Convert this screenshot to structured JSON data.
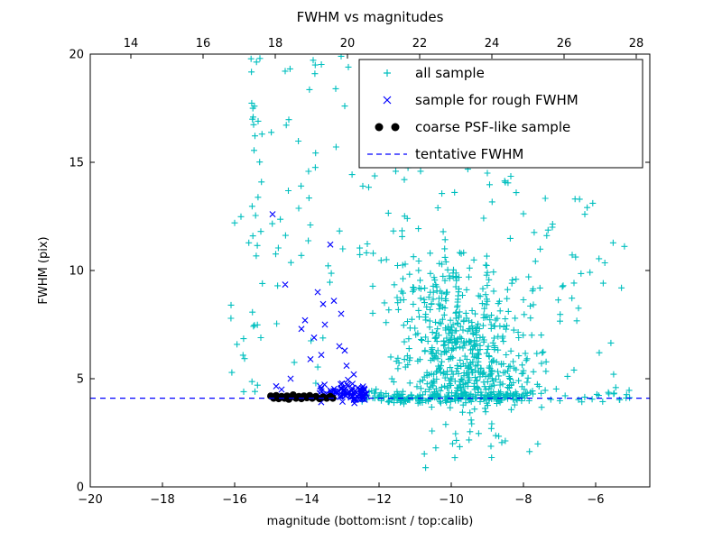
{
  "figure": {
    "background": "#ffffff",
    "frame_color": "#000000"
  },
  "chart_data": {
    "type": "scatter",
    "title": "FWHM vs magnitudes",
    "xlabel": "magnitude (bottom:isnt / top:calib)",
    "ylabel": "FWHM (pix)",
    "xlim": [
      -20,
      -4.5
    ],
    "ylim": [
      0,
      20
    ],
    "bottom_ticks": [
      -20,
      -18,
      -16,
      -14,
      -12,
      -10,
      -8,
      -6
    ],
    "top_ticks": [
      14,
      16,
      18,
      20,
      22,
      24,
      26,
      28
    ],
    "top_axis_range": [
      12.875,
      28.375
    ],
    "y_ticks": [
      0,
      5,
      10,
      15,
      20
    ],
    "grid": false,
    "legend_position": "upper right",
    "tentative_fwhm": 4.1,
    "series": [
      {
        "name": "all sample",
        "marker": "+",
        "color": "#00bfbf",
        "points": [
          [
            -13.05,
            19.9
          ],
          [
            -12.85,
            19.4
          ],
          [
            -13.2,
            18.4
          ],
          [
            -12.95,
            17.6
          ],
          [
            -15.3,
            19.8
          ],
          [
            -15.35,
            16.9
          ],
          [
            -12.0,
            16.5
          ],
          [
            -11.3,
            14.2
          ],
          [
            -12.45,
            13.9
          ],
          [
            -9.0,
            14.5
          ],
          [
            -8.2,
            13.6
          ],
          [
            -7.2,
            12.0
          ],
          [
            -6.3,
            12.6
          ],
          [
            -5.9,
            6.2
          ],
          [
            -5.5,
            4.3
          ],
          [
            -16.0,
            12.2
          ],
          [
            -16.1,
            8.4
          ],
          [
            -15.75,
            4.4
          ],
          [
            -9.9,
            1.35
          ],
          [
            -8.6,
            2.05
          ],
          [
            -6.9,
            9.3
          ],
          [
            -6.6,
            5.4
          ]
        ],
        "clusters": [
          {
            "dist": "gauss",
            "cx": -9.7,
            "cy": 6.6,
            "sx": 0.85,
            "sy": 1.6,
            "n": 400
          },
          {
            "dist": "gauss",
            "cx": -9.2,
            "cy": 5.0,
            "sx": 0.9,
            "sy": 0.6,
            "n": 120
          },
          {
            "dist": "band",
            "x0": -12.5,
            "x1": -8.0,
            "cy": 4.15,
            "sy": 0.12,
            "n": 210
          },
          {
            "dist": "band",
            "x0": -8.0,
            "x1": -5.0,
            "cy": 4.2,
            "sy": 0.25,
            "n": 30
          },
          {
            "dist": "uniform",
            "x0": -15.55,
            "x1": -15.2,
            "y0": 3.6,
            "y1": 20,
            "n": 30
          },
          {
            "dist": "uniform",
            "x0": -15.0,
            "x1": -12.8,
            "y0": 4.5,
            "y1": 20,
            "n": 40
          },
          {
            "dist": "uniform",
            "x0": -12.8,
            "x1": -8.0,
            "y0": 8.5,
            "y1": 19.5,
            "n": 80
          },
          {
            "dist": "uniform",
            "x0": -8.0,
            "x1": -5.2,
            "y0": 4.8,
            "y1": 13.5,
            "n": 40
          },
          {
            "dist": "band",
            "x0": -10.8,
            "x1": -7.6,
            "cy": 2.4,
            "sy": 0.7,
            "n": 16
          },
          {
            "dist": "gauss",
            "cx": -10.6,
            "cy": 9.5,
            "sx": 0.8,
            "sy": 1.2,
            "n": 60
          },
          {
            "dist": "uniform",
            "x0": -16.2,
            "x1": -15.5,
            "y0": 4.0,
            "y1": 13.0,
            "n": 8
          }
        ]
      },
      {
        "name": "sample for rough FWHM",
        "marker": "x",
        "color": "#0000ff",
        "points": [
          [
            -14.95,
            12.6
          ],
          [
            -13.35,
            11.2
          ],
          [
            -14.6,
            9.35
          ],
          [
            -13.7,
            9.0
          ],
          [
            -13.25,
            8.6
          ],
          [
            -13.55,
            8.45
          ],
          [
            -13.05,
            8.0
          ],
          [
            -14.05,
            7.7
          ],
          [
            -13.5,
            7.5
          ],
          [
            -14.15,
            7.3
          ],
          [
            -13.1,
            6.5
          ],
          [
            -12.95,
            6.3
          ],
          [
            -13.9,
            5.9
          ],
          [
            -12.9,
            5.6
          ],
          [
            -14.45,
            5.0
          ],
          [
            -14.85,
            4.65
          ],
          [
            -14.7,
            4.5
          ],
          [
            -13.8,
            6.9
          ],
          [
            -13.6,
            6.1
          ],
          [
            -12.7,
            5.2
          ]
        ],
        "clusters": [
          {
            "dist": "band",
            "x0": -13.65,
            "x1": -12.35,
            "cy": 4.35,
            "sy": 0.22,
            "n": 60
          },
          {
            "dist": "band",
            "x0": -13.1,
            "x1": -12.4,
            "cy": 4.3,
            "sy": 0.3,
            "n": 30
          }
        ]
      },
      {
        "name": "coarse PSF-like sample",
        "marker": "o",
        "color": "#000000",
        "points": [
          [
            -15.0,
            4.2
          ],
          [
            -14.92,
            4.1
          ],
          [
            -14.85,
            4.22
          ],
          [
            -14.78,
            4.08
          ],
          [
            -14.7,
            4.18
          ],
          [
            -14.62,
            4.1
          ],
          [
            -14.55,
            4.2
          ],
          [
            -14.5,
            4.05
          ],
          [
            -14.45,
            4.15
          ],
          [
            -14.38,
            4.25
          ],
          [
            -14.3,
            4.1
          ],
          [
            -14.22,
            4.18
          ],
          [
            -14.15,
            4.08
          ],
          [
            -14.08,
            4.2
          ],
          [
            -14.0,
            4.12
          ],
          [
            -13.92,
            4.22
          ],
          [
            -13.85,
            4.1
          ],
          [
            -13.75,
            4.18
          ],
          [
            -13.65,
            4.08
          ],
          [
            -13.55,
            4.15
          ],
          [
            -13.45,
            4.1
          ],
          [
            -13.35,
            4.18
          ],
          [
            -13.28,
            4.1
          ]
        ]
      },
      {
        "name": "tentative FWHM",
        "marker": "dashed-line",
        "color": "#0000ff",
        "y": 4.1
      }
    ]
  }
}
